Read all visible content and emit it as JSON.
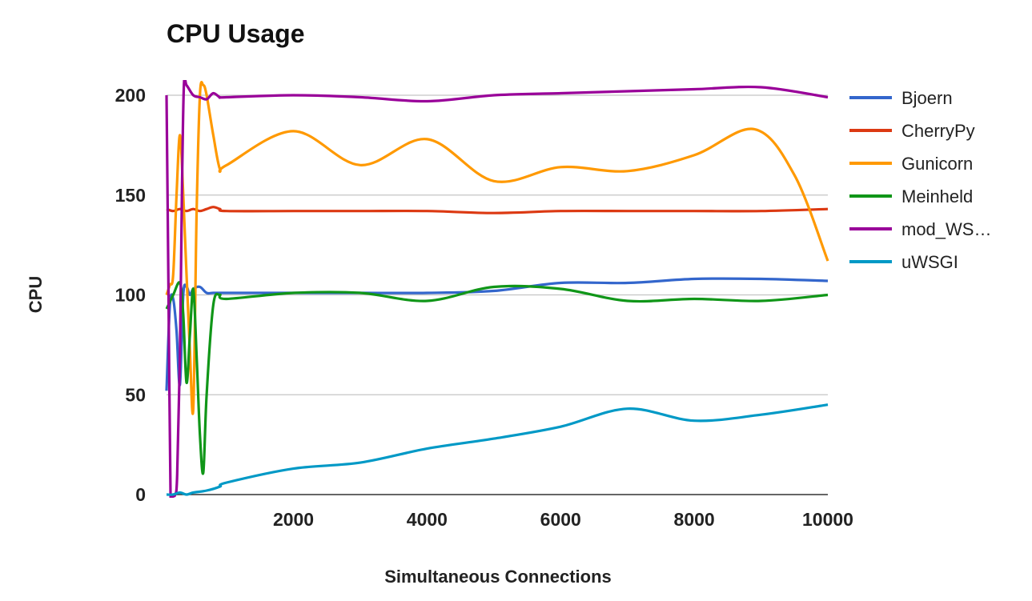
{
  "chart_data": {
    "type": "line",
    "title": "CPU Usage",
    "xlabel": "Simultaneous Connections",
    "ylabel": "CPU",
    "xlim": [
      100,
      10000
    ],
    "ylim": [
      0,
      200
    ],
    "xticks": [
      2000,
      4000,
      6000,
      8000,
      10000
    ],
    "yticks": [
      0,
      50,
      100,
      150,
      200
    ],
    "grid": "horizontal",
    "legend": "right",
    "series": [
      {
        "name": "Bjoern",
        "color": "#3366cc",
        "points": [
          [
            100,
            52
          ],
          [
            150,
            95
          ],
          [
            200,
            98
          ],
          [
            250,
            82
          ],
          [
            300,
            55
          ],
          [
            350,
            100
          ],
          [
            400,
            104
          ],
          [
            450,
            100
          ],
          [
            500,
            103
          ],
          [
            600,
            104
          ],
          [
            700,
            101
          ],
          [
            800,
            101
          ],
          [
            1000,
            101
          ],
          [
            2000,
            101
          ],
          [
            3000,
            101
          ],
          [
            4000,
            101
          ],
          [
            5000,
            102
          ],
          [
            6000,
            106
          ],
          [
            7000,
            106
          ],
          [
            8000,
            108
          ],
          [
            9000,
            108
          ],
          [
            10000,
            107
          ]
        ]
      },
      {
        "name": "CherryPy",
        "color": "#dc3912",
        "points": [
          [
            100,
            143
          ],
          [
            200,
            142
          ],
          [
            300,
            143
          ],
          [
            400,
            142
          ],
          [
            500,
            143
          ],
          [
            600,
            142
          ],
          [
            700,
            143
          ],
          [
            800,
            144
          ],
          [
            900,
            143
          ],
          [
            1000,
            142
          ],
          [
            2000,
            142
          ],
          [
            3000,
            142
          ],
          [
            4000,
            142
          ],
          [
            5000,
            141
          ],
          [
            6000,
            142
          ],
          [
            7000,
            142
          ],
          [
            8000,
            142
          ],
          [
            9000,
            142
          ],
          [
            10000,
            143
          ]
        ]
      },
      {
        "name": "Gunicorn",
        "color": "#ff9900",
        "points": [
          [
            100,
            100
          ],
          [
            150,
            105
          ],
          [
            200,
            110
          ],
          [
            250,
            150
          ],
          [
            300,
            180
          ],
          [
            350,
            150
          ],
          [
            400,
            110
          ],
          [
            450,
            72
          ],
          [
            500,
            43
          ],
          [
            550,
            140
          ],
          [
            600,
            200
          ],
          [
            650,
            205
          ],
          [
            700,
            200
          ],
          [
            800,
            180
          ],
          [
            900,
            163
          ],
          [
            1000,
            165
          ],
          [
            2000,
            182
          ],
          [
            3000,
            165
          ],
          [
            4000,
            178
          ],
          [
            5000,
            157
          ],
          [
            6000,
            164
          ],
          [
            7000,
            162
          ],
          [
            8000,
            170
          ],
          [
            8900,
            183
          ],
          [
            9500,
            160
          ],
          [
            10000,
            117
          ]
        ]
      },
      {
        "name": "Meinheld",
        "color": "#109618",
        "points": [
          [
            100,
            93
          ],
          [
            200,
            100
          ],
          [
            300,
            106
          ],
          [
            350,
            90
          ],
          [
            400,
            56
          ],
          [
            450,
            80
          ],
          [
            500,
            103
          ],
          [
            550,
            70
          ],
          [
            600,
            30
          ],
          [
            650,
            11
          ],
          [
            700,
            50
          ],
          [
            800,
            95
          ],
          [
            900,
            100
          ],
          [
            1000,
            98
          ],
          [
            2000,
            101
          ],
          [
            3000,
            101
          ],
          [
            4000,
            97
          ],
          [
            5000,
            104
          ],
          [
            6000,
            103
          ],
          [
            7000,
            97
          ],
          [
            8000,
            98
          ],
          [
            9000,
            97
          ],
          [
            10000,
            100
          ]
        ]
      },
      {
        "name": "mod_WS…",
        "color": "#990099",
        "points": [
          [
            100,
            200
          ],
          [
            130,
            100
          ],
          [
            160,
            0
          ],
          [
            200,
            0
          ],
          [
            230,
            0
          ],
          [
            260,
            10
          ],
          [
            300,
            70
          ],
          [
            330,
            150
          ],
          [
            360,
            205
          ],
          [
            400,
            205
          ],
          [
            500,
            200
          ],
          [
            600,
            199
          ],
          [
            700,
            198
          ],
          [
            800,
            201
          ],
          [
            900,
            199
          ],
          [
            1000,
            199
          ],
          [
            2000,
            200
          ],
          [
            3000,
            199
          ],
          [
            4000,
            197
          ],
          [
            5000,
            200
          ],
          [
            6000,
            201
          ],
          [
            7000,
            202
          ],
          [
            8000,
            203
          ],
          [
            9000,
            204
          ],
          [
            10000,
            199
          ]
        ]
      },
      {
        "name": "uWSGI",
        "color": "#0099c6",
        "points": [
          [
            100,
            0
          ],
          [
            200,
            0
          ],
          [
            300,
            1
          ],
          [
            400,
            0
          ],
          [
            500,
            1
          ],
          [
            700,
            2
          ],
          [
            900,
            4
          ],
          [
            1000,
            6
          ],
          [
            2000,
            13
          ],
          [
            3000,
            16
          ],
          [
            4000,
            23
          ],
          [
            5000,
            28
          ],
          [
            6000,
            34
          ],
          [
            7000,
            43
          ],
          [
            8000,
            37
          ],
          [
            9000,
            40
          ],
          [
            10000,
            45
          ]
        ]
      }
    ]
  }
}
